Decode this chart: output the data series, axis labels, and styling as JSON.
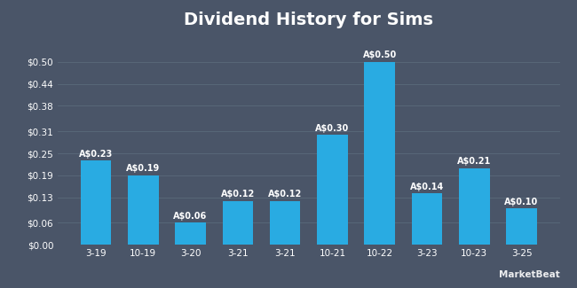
{
  "title": "Dividend History for Sims",
  "categories": [
    "3-19",
    "10-19",
    "3-20",
    "3-21",
    "3-21",
    "10-21",
    "10-22",
    "3-23",
    "10-23",
    "3-25"
  ],
  "values": [
    0.23,
    0.19,
    0.06,
    0.12,
    0.12,
    0.3,
    0.5,
    0.14,
    0.21,
    0.1
  ],
  "bar_labels": [
    "A$0.23",
    "A$0.19",
    "A$0.06",
    "A$0.12",
    "A$0.12",
    "A$0.30",
    "A$0.50",
    "A$0.14",
    "A$0.21",
    "A$0.10"
  ],
  "bar_color": "#29ABE2",
  "background_color": "#4A5568",
  "plot_bg_color": "#4A5568",
  "text_color": "#FFFFFF",
  "grid_color": "#5A6A7A",
  "yticks": [
    0.0,
    0.06,
    0.13,
    0.19,
    0.25,
    0.31,
    0.38,
    0.44,
    0.5
  ],
  "ytick_labels": [
    "$0.00",
    "$0.06",
    "$0.13",
    "$0.19",
    "$0.25",
    "$0.31",
    "$0.38",
    "$0.44",
    "$0.50"
  ],
  "ylim": [
    0,
    0.575
  ],
  "title_fontsize": 14,
  "tick_fontsize": 7.5,
  "bar_label_fontsize": 7
}
